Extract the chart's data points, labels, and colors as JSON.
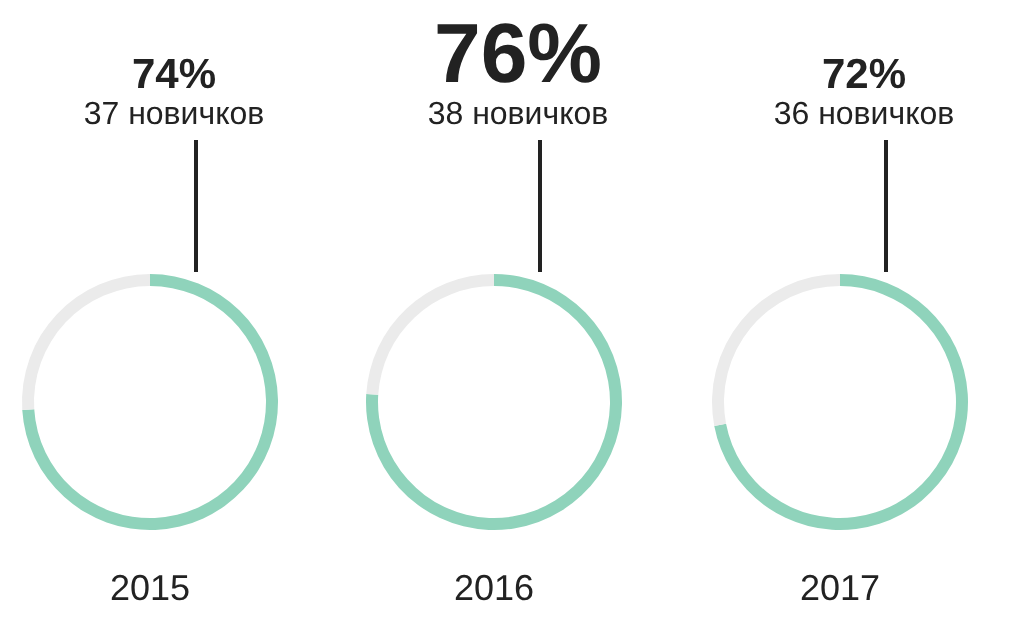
{
  "chart_data": [
    {
      "type": "donut",
      "categories": [
        null,
        null
      ],
      "values": [
        74,
        26
      ],
      "colors": [
        "#8fd3bb",
        "#ebebeb"
      ],
      "annotations": [
        "74%",
        "37 новичков"
      ],
      "xlabel": "2015"
    },
    {
      "type": "donut",
      "categories": [
        null,
        null
      ],
      "values": [
        76,
        24
      ],
      "colors": [
        "#8fd3bb",
        "#ebebeb"
      ],
      "annotations": [
        "76%",
        "38 новичков"
      ],
      "xlabel": "2016"
    },
    {
      "type": "donut",
      "categories": [
        null,
        null
      ],
      "values": [
        72,
        28
      ],
      "colors": [
        "#8fd3bb",
        "#ebebeb"
      ],
      "annotations": [
        "72%",
        "36 новичков"
      ],
      "xlabel": "2017"
    }
  ]
}
